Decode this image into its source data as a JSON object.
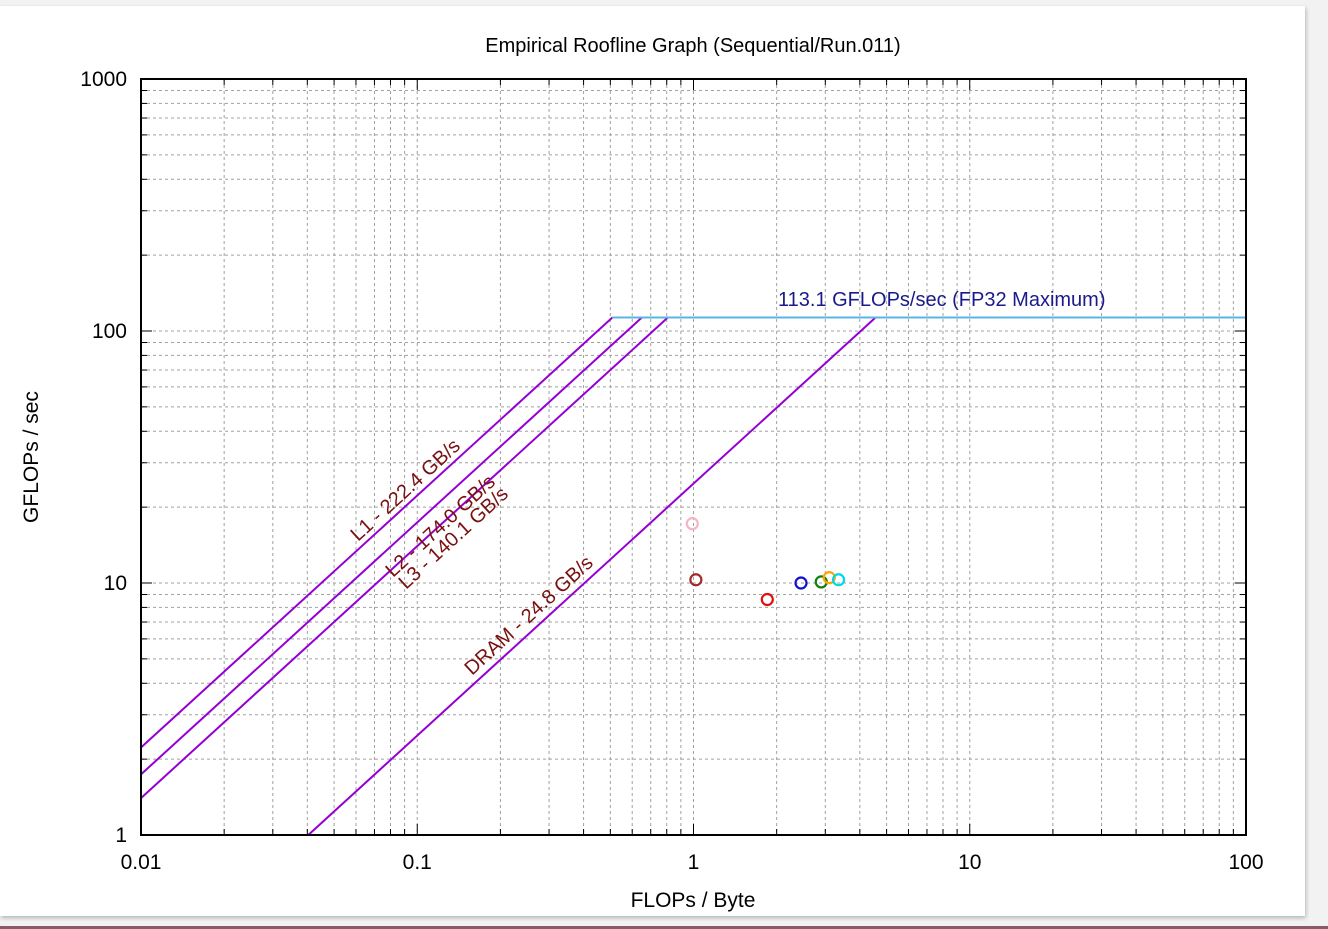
{
  "chart_data": {
    "type": "scatter",
    "title": "Empirical Roofline Graph (Sequential/Run.011)",
    "xlabel": "FLOPs / Byte",
    "ylabel": "GFLOPs / sec",
    "xscale": "log",
    "yscale": "log",
    "xlim": [
      0.01,
      100
    ],
    "ylim": [
      1,
      1000
    ],
    "grid": true,
    "x_ticks": [
      "0.01",
      "0.1",
      "1",
      "10",
      "100"
    ],
    "y_ticks": [
      "1",
      "10",
      "100",
      "1000"
    ],
    "ceiling": {
      "label": "113.1 GFLOPs/sec (FP32 Maximum)",
      "gflops": 113.1,
      "color": "#5ab4e6",
      "label_color": "#1a1a8c"
    },
    "bandwidth_roofs": [
      {
        "label": "L1 - 222.4 GB/s",
        "bandwidth": 222.4
      },
      {
        "label": "L2 - 174.0 GB/s",
        "bandwidth": 174.0
      },
      {
        "label": "L3 - 140.1 GB/s",
        "bandwidth": 140.1
      },
      {
        "label": "DRAM - 24.8 GB/s",
        "bandwidth": 24.8
      }
    ],
    "roof_color": "#9400d3",
    "roof_label_color": "#7a1010",
    "points": [
      {
        "x": 0.99,
        "y": 17.2,
        "color": "#f4b6c2"
      },
      {
        "x": 1.02,
        "y": 10.3,
        "color": "#a52a2a"
      },
      {
        "x": 1.85,
        "y": 8.6,
        "color": "#e01010"
      },
      {
        "x": 2.45,
        "y": 10.0,
        "color": "#1010d0"
      },
      {
        "x": 2.9,
        "y": 10.1,
        "color": "#108010"
      },
      {
        "x": 3.1,
        "y": 10.5,
        "color": "#ffa500"
      },
      {
        "x": 3.35,
        "y": 10.3,
        "color": "#00d8e8"
      }
    ]
  }
}
